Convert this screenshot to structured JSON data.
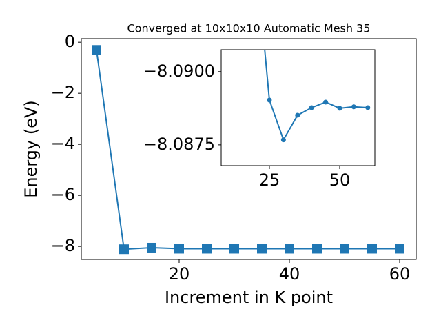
{
  "chart_data": [
    {
      "type": "line",
      "title": "Converged at 10x10x10 Automatic Mesh 35",
      "x_label": "Increment in K point",
      "y_label": "Energy (eV)",
      "x": [
        5,
        10,
        15,
        20,
        25,
        30,
        35,
        40,
        45,
        50,
        55,
        60
      ],
      "series": [
        {
          "color": "#1f77b4",
          "marker": "square",
          "values": [
            -0.3,
            -8.11,
            -8.05,
            -8.09,
            -8.09,
            -8.09,
            -8.09,
            -8.09,
            -8.09,
            -8.09,
            -8.09,
            -8.09
          ]
        }
      ],
      "xlim": [
        2.25,
        63
      ],
      "ylim": [
        -8.51,
        0.14
      ],
      "xticks": [
        20,
        40,
        60
      ],
      "yticks": [
        0,
        {
          "value": -2,
          "label": "−2"
        },
        {
          "value": -4,
          "label": "−4"
        },
        {
          "value": -6,
          "label": "−6"
        },
        {
          "value": -8,
          "label": "−8"
        }
      ]
    },
    {
      "type": "line",
      "x": [
        20,
        25,
        30,
        35,
        40,
        45,
        50,
        55,
        60
      ],
      "series": [
        {
          "color": "#1f77b4",
          "marker": "circle",
          "values": [
            -8.09417,
            -8.08903,
            -8.08767,
            -8.08851,
            -8.08877,
            -8.08896,
            -8.08875,
            -8.0888,
            -8.08877
          ]
        }
      ],
      "xlim": [
        7.85,
        62.5
      ],
      "ylim": [
        -8.08679,
        -8.09075
      ],
      "xticks": [
        25,
        50
      ],
      "yticks": [
        {
          "value": -8.09,
          "label": "−8.0900"
        },
        {
          "value": -8.0875,
          "label": "−8.0875"
        }
      ]
    }
  ]
}
